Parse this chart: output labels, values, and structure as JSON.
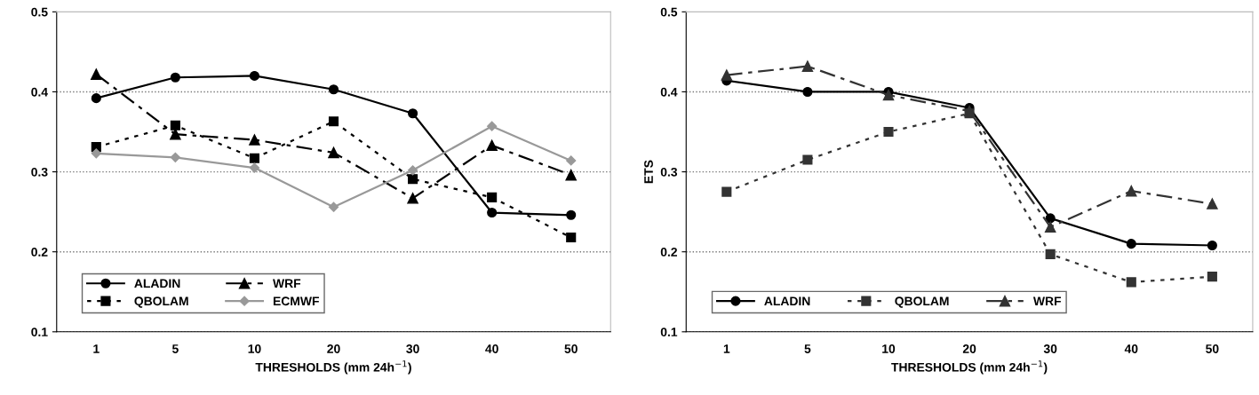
{
  "chart_data": [
    {
      "type": "line",
      "xlabel": "THRESHOLDS (mm 24h$^{−1}$)",
      "categories": [
        "1",
        "5",
        "10",
        "20",
        "30",
        "40",
        "50"
      ],
      "ylim": [
        0.1,
        0.5
      ],
      "yticks": [
        0.1,
        0.2,
        0.3,
        0.4,
        0.5
      ],
      "grid": "y",
      "legend": "bottom left",
      "series": [
        {
          "name": "ALADIN",
          "color": "#000000",
          "marker": "circle",
          "line_style": "solid",
          "values": [
            0.392,
            0.418,
            0.42,
            0.403,
            0.373,
            0.249,
            0.246
          ]
        },
        {
          "name": "QBOLAM",
          "color": "#000000",
          "marker": "square",
          "line_style": "dotted",
          "values": [
            0.331,
            0.358,
            0.317,
            0.363,
            0.291,
            0.268,
            0.218
          ]
        },
        {
          "name": "WRF",
          "color": "#000000",
          "marker": "triangle",
          "line_style": "dashdot",
          "values": [
            0.422,
            0.347,
            0.34,
            0.324,
            0.267,
            0.333,
            0.296
          ]
        },
        {
          "name": "ECMWF",
          "color": "#999999",
          "marker": "diamond",
          "line_style": "solid",
          "values": [
            0.323,
            0.318,
            0.305,
            0.256,
            0.302,
            0.357,
            0.314
          ]
        }
      ]
    },
    {
      "type": "line",
      "xlabel": "THRESHOLDS (mm 24h$^{−1}$)",
      "ylabel": "ETS",
      "categories": [
        "1",
        "5",
        "10",
        "20",
        "30",
        "40",
        "50"
      ],
      "ylim": [
        0.1,
        0.5
      ],
      "yticks": [
        0.1,
        0.2,
        0.3,
        0.4,
        0.5
      ],
      "grid": "y",
      "legend": "bottom left",
      "series": [
        {
          "name": "ALADIN",
          "color": "#000000",
          "marker": "circle",
          "line_style": "solid",
          "values": [
            0.414,
            0.4,
            0.4,
            0.38,
            0.242,
            0.21,
            0.208
          ]
        },
        {
          "name": "QBOLAM",
          "color": "#333333",
          "marker": "square",
          "line_style": "dotted",
          "values": [
            0.275,
            0.315,
            0.35,
            0.373,
            0.197,
            0.162,
            0.169
          ]
        },
        {
          "name": "WRF",
          "color": "#333333",
          "marker": "triangle",
          "line_style": "dashdot",
          "values": [
            0.421,
            0.432,
            0.396,
            0.376,
            0.231,
            0.276,
            0.26
          ]
        }
      ]
    }
  ]
}
